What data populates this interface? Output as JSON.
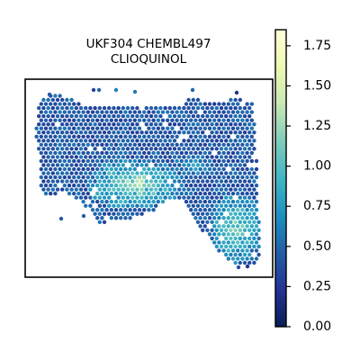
{
  "chart_data": {
    "type": "scatter",
    "title_lines": [
      "UKF304 CHEMBL497",
      "CLIOQUINOL"
    ],
    "xlabel": "",
    "ylabel": "",
    "grid": false,
    "colormap": "YlGnBu",
    "colorbar": {
      "range": [
        0.0,
        1.85
      ],
      "ticks": [
        0.0,
        0.25,
        0.5,
        0.75,
        1.0,
        1.25,
        1.5,
        1.75
      ],
      "tick_labels": [
        "0.00",
        "0.25",
        "0.50",
        "0.75",
        "1.00",
        "1.25",
        "1.50",
        "1.75"
      ],
      "stops": [
        "#081d58",
        "#253494",
        "#225ea8",
        "#1d91c0",
        "#41b6c4",
        "#7fcdbb",
        "#c7e9b4",
        "#edf8b1",
        "#ffffd9"
      ]
    },
    "description_of_points": "Dense hexagonal grid of spot expression values across a tissue section; mostly 0.2-0.6 (blue) with higher values 0.7-1.3 (teal/light green) in the lower central and lower right regions."
  }
}
